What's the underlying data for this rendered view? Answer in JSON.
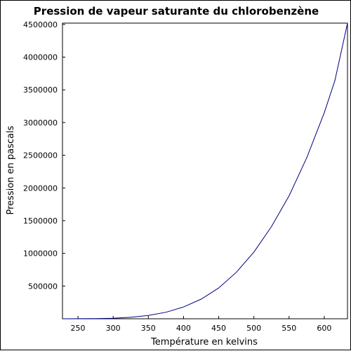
{
  "chart_data": {
    "type": "line",
    "title": "Pression de vapeur saturante du chlorobenzène",
    "xlabel": "Température en kelvins",
    "ylabel": "Pression en pascals",
    "xlim": [
      228,
      633
    ],
    "ylim": [
      0,
      4520000
    ],
    "xticks": [
      250,
      300,
      350,
      400,
      450,
      500,
      550,
      600
    ],
    "yticks": [
      500000,
      1000000,
      1500000,
      2000000,
      2500000,
      3000000,
      3500000,
      4000000,
      4500000
    ],
    "grid": false,
    "legend": "none",
    "line_color": "#000080",
    "series": [
      {
        "x": [
          228,
          250,
          275,
          300,
          325,
          350,
          375,
          400,
          425,
          450,
          475,
          500,
          525,
          550,
          575,
          600,
          615,
          633
        ],
        "y": [
          150,
          700,
          2800,
          8700,
          23000,
          51000,
          100000,
          180000,
          300000,
          470000,
          710000,
          1020000,
          1410000,
          1880000,
          2460000,
          3150000,
          3640000,
          4520000
        ]
      }
    ]
  }
}
